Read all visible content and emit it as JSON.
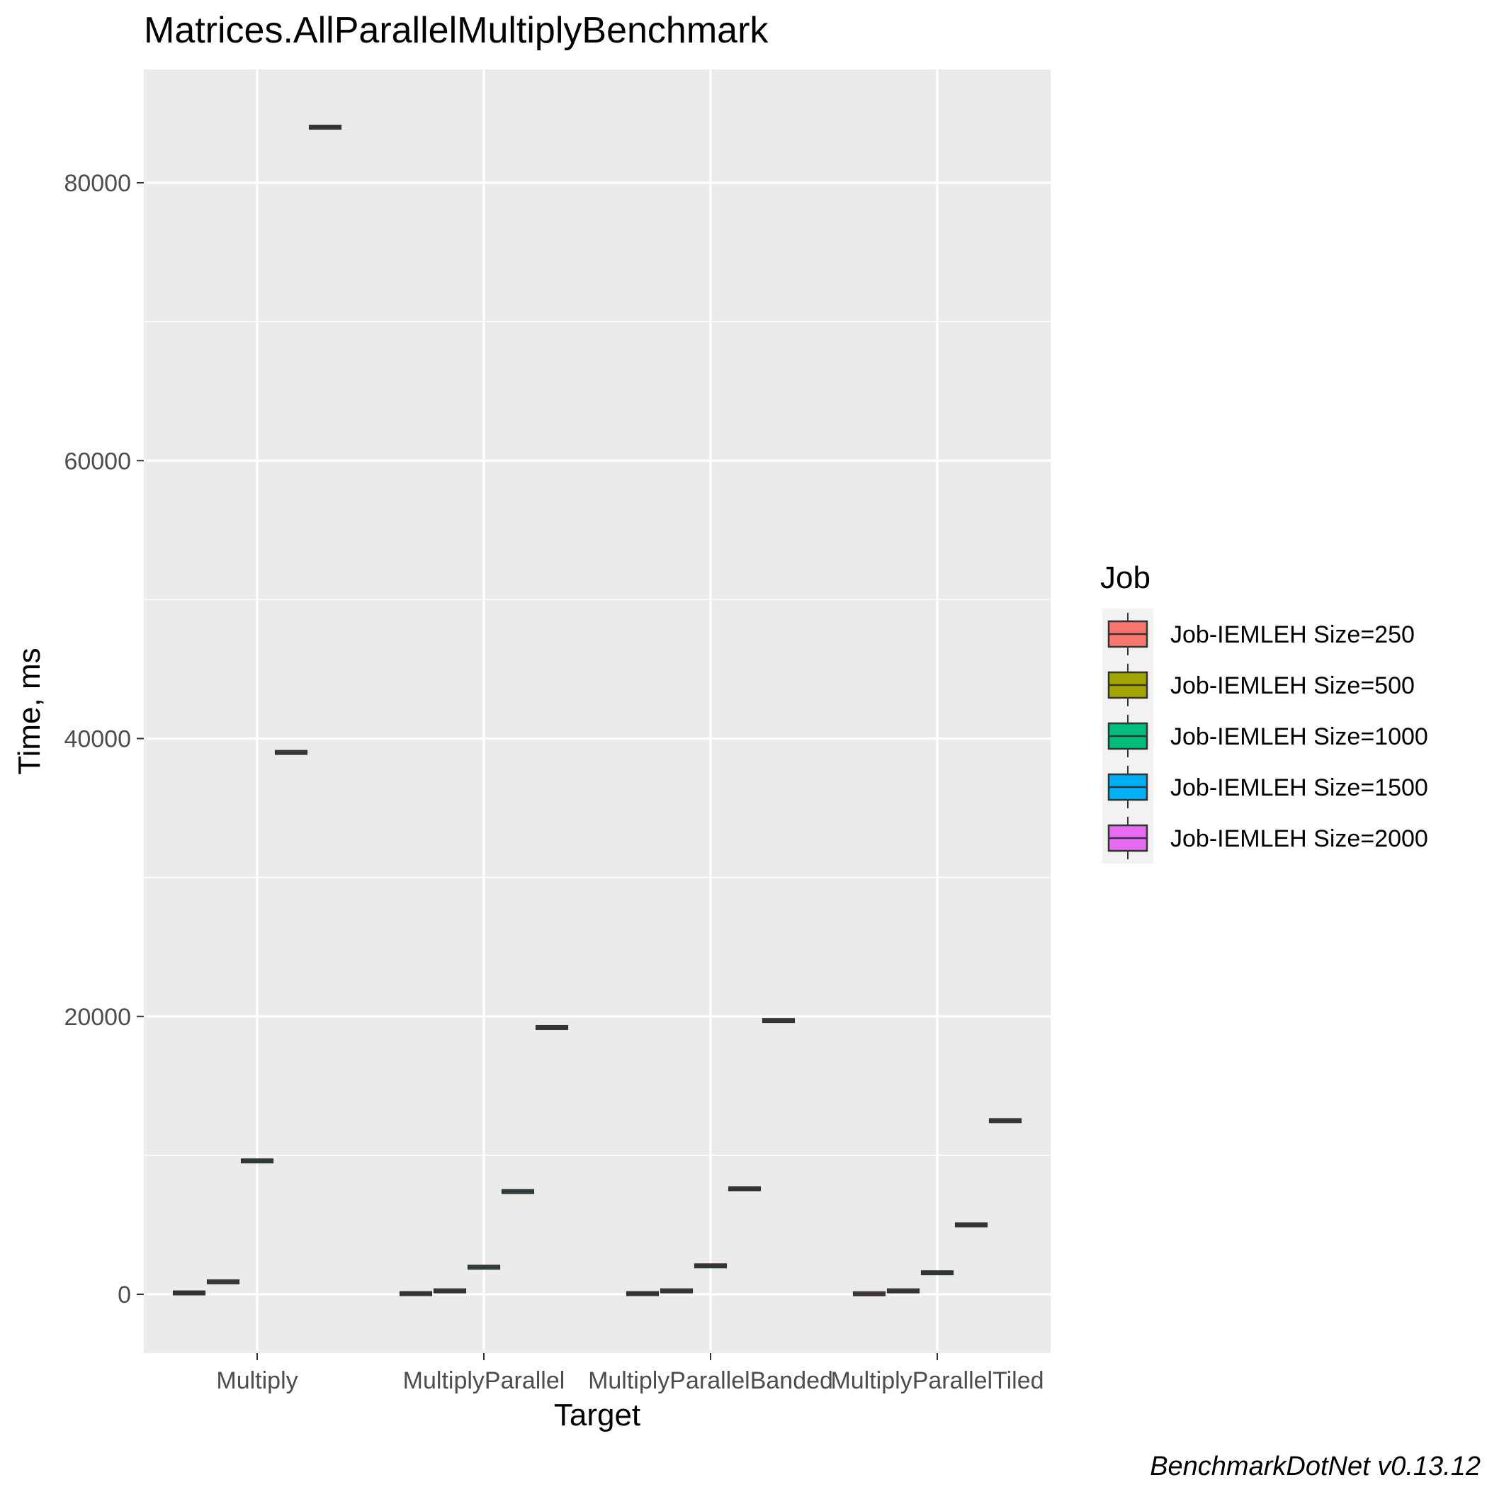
{
  "chart_data": {
    "type": "boxplot",
    "title": "Matrices.AllParallelMultiplyBenchmark",
    "xlabel": "Target",
    "ylabel": "Time, ms",
    "caption": "BenchmarkDotNet v0.13.12",
    "categories": [
      "Multiply",
      "MultiplyParallel",
      "MultiplyParallelBanded",
      "MultiplyParallelTiled"
    ],
    "ylim": [
      -4000,
      88000
    ],
    "yticks": [
      0,
      20000,
      40000,
      60000,
      80000
    ],
    "ytick_labels": [
      "0",
      "20000",
      "40000",
      "60000",
      "80000"
    ],
    "grid": true,
    "legend": {
      "title": "Job",
      "position": "right"
    },
    "series": [
      {
        "name": "Job-IEMLEH Size=250",
        "color": "#F8766D",
        "values": [
          100,
          50,
          50,
          40
        ]
      },
      {
        "name": "Job-IEMLEH Size=500",
        "color": "#A3A500",
        "values": [
          900,
          250,
          250,
          250
        ]
      },
      {
        "name": "Job-IEMLEH Size=1000",
        "color": "#00BF7D",
        "values": [
          9600,
          1950,
          2050,
          1550
        ]
      },
      {
        "name": "Job-IEMLEH Size=1500",
        "color": "#00B0F6",
        "values": [
          39000,
          7400,
          7600,
          5000
        ]
      },
      {
        "name": "Job-IEMLEH Size=2000",
        "color": "#E76BF3",
        "values": [
          84000,
          19200,
          19700,
          12500
        ]
      }
    ]
  }
}
